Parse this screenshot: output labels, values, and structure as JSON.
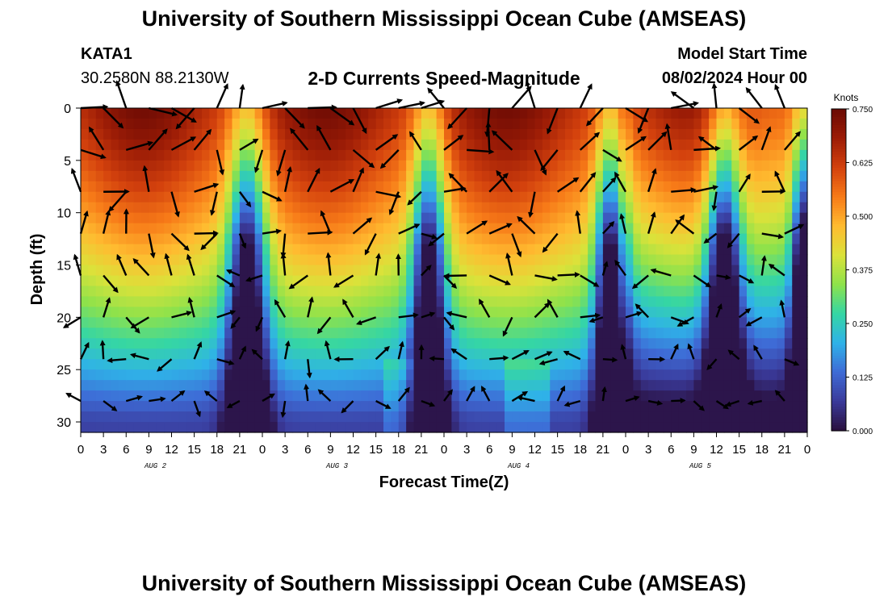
{
  "header": {
    "title": "University of Southern Mississippi Ocean Cube (AMSEAS)",
    "station_id": "KATA1",
    "coordinates": "30.2580N  88.2130W",
    "subtitle": "2-D Currents Speed-Magnitude",
    "model_start_label": "Model Start Time",
    "model_start_value": "08/02/2024 Hour 00"
  },
  "footer": {
    "title": "University of Southern Mississippi Ocean Cube (AMSEAS)"
  },
  "chart_data": {
    "type": "heatmap",
    "title": "2-D Currents Speed-Magnitude",
    "xlabel": "Forecast Time(Z)",
    "ylabel": "Depth (ft)",
    "x_ticks": [
      "0",
      "3",
      "6",
      "9",
      "12",
      "15",
      "18",
      "21",
      "0",
      "3",
      "6",
      "9",
      "12",
      "15",
      "18",
      "21",
      "0",
      "3",
      "6",
      "9",
      "12",
      "15",
      "18",
      "21",
      "0",
      "3",
      "6",
      "9",
      "12",
      "15",
      "18",
      "21",
      "0"
    ],
    "x_range_hours": [
      0,
      96
    ],
    "day_labels": [
      "AUG 2",
      "AUG 3",
      "AUG 4",
      "AUG 5"
    ],
    "y_ticks": [
      0,
      5,
      10,
      15,
      20,
      25,
      30
    ],
    "ylim": [
      0,
      31
    ],
    "y_reversed": true,
    "colorbar": {
      "unit": "Knots",
      "min": 0.0,
      "max": 0.75,
      "ticks": [
        "0.750",
        "0.625",
        "0.500",
        "0.375",
        "0.250",
        "0.125",
        "0.000"
      ],
      "colormap": [
        "#2a0f3d",
        "#3a3a9a",
        "#3e6bd6",
        "#2fb2e8",
        "#35d6a4",
        "#8ee24b",
        "#dbe23a",
        "#ffbb30",
        "#f77a18",
        "#d3410d",
        "#9c1c06",
        "#6a0a04"
      ]
    },
    "depth_rows_ft": [
      0,
      4,
      8,
      12,
      16,
      20,
      24,
      28
    ],
    "speed_profile_note": "Surface strong (~0.6-0.7 kt), weakening with depth; weak columns near hours 21-24, 45-48, 69-72, 84-87",
    "strong_surface_knots": 0.68,
    "bottom_knots": 0.08
  }
}
